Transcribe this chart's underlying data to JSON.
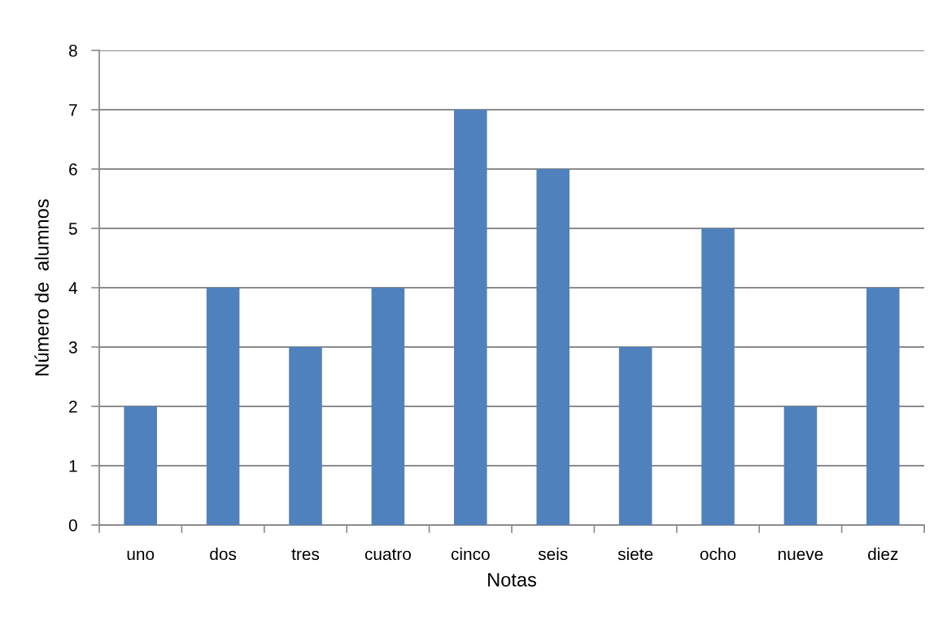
{
  "chart_data": {
    "type": "bar",
    "xlabel": "Notas",
    "ylabel": "Número de  alumnos",
    "categories": [
      "uno",
      "dos",
      "tres",
      "cuatro",
      "cinco",
      "seis",
      "siete",
      "ocho",
      "nueve",
      "diez"
    ],
    "values": [
      2,
      4,
      3,
      4,
      7,
      6,
      3,
      5,
      2,
      4
    ],
    "color": "#4f81bd",
    "ylim": [
      0,
      8
    ],
    "yticks": [
      0,
      1,
      2,
      3,
      4,
      5,
      6,
      7,
      8
    ],
    "grid": "y",
    "legend": false
  }
}
